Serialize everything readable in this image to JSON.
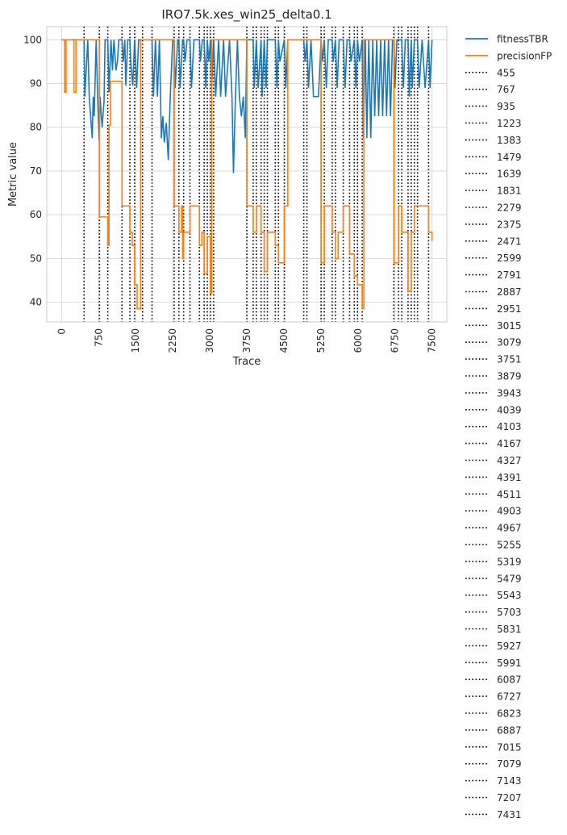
{
  "chart_data": {
    "type": "line",
    "title": "IRO7.5k.xes_win25_delta0.1",
    "xlabel": "Trace",
    "ylabel": "Metric value",
    "xlim": [
      -300,
      7800
    ],
    "ylim": [
      35.5,
      103
    ],
    "xticks": [
      0,
      750,
      1500,
      2250,
      3000,
      3750,
      4500,
      5250,
      6000,
      6750,
      7500
    ],
    "yticks": [
      40,
      50,
      60,
      70,
      80,
      90,
      100
    ],
    "grid": true,
    "legend_position": "outside-right",
    "series": [
      {
        "name": "fitnessTBR",
        "color": "#1f77b4",
        "points": [
          [
            0,
            100
          ],
          [
            455,
            100
          ],
          [
            470,
            87
          ],
          [
            530,
            100
          ],
          [
            560,
            87
          ],
          [
            620,
            77.5
          ],
          [
            640,
            87
          ],
          [
            660,
            82.5
          ],
          [
            700,
            100
          ],
          [
            730,
            87
          ],
          [
            760,
            77
          ],
          [
            780,
            87
          ],
          [
            820,
            80
          ],
          [
            860,
            86
          ],
          [
            880,
            100
          ],
          [
            935,
            100
          ],
          [
            960,
            88
          ],
          [
            1000,
            100
          ],
          [
            1030,
            93
          ],
          [
            1060,
            100
          ],
          [
            1100,
            93
          ],
          [
            1130,
            95
          ],
          [
            1160,
            100
          ],
          [
            1223,
            100
          ],
          [
            1250,
            95
          ],
          [
            1280,
            100
          ],
          [
            1300,
            89.5
          ],
          [
            1340,
            100
          ],
          [
            1383,
            100
          ],
          [
            1400,
            95
          ],
          [
            1440,
            89.5
          ],
          [
            1479,
            100
          ],
          [
            1520,
            89
          ],
          [
            1560,
            100
          ],
          [
            1639,
            100
          ],
          [
            1700,
            100
          ],
          [
            1831,
            100
          ],
          [
            1860,
            87
          ],
          [
            1900,
            100
          ],
          [
            1940,
            87
          ],
          [
            1980,
            100
          ],
          [
            2020,
            77.5
          ],
          [
            2050,
            82.5
          ],
          [
            2080,
            76.5
          ],
          [
            2120,
            81
          ],
          [
            2160,
            72.5
          ],
          [
            2200,
            87
          ],
          [
            2250,
            100
          ],
          [
            2279,
            100
          ],
          [
            2300,
            89
          ],
          [
            2350,
            100
          ],
          [
            2375,
            100
          ],
          [
            2400,
            89
          ],
          [
            2450,
            100
          ],
          [
            2471,
            100
          ],
          [
            2500,
            95
          ],
          [
            2540,
            100
          ],
          [
            2599,
            100
          ],
          [
            2630,
            89
          ],
          [
            2680,
            100
          ],
          [
            2791,
            100
          ],
          [
            2810,
            95
          ],
          [
            2850,
            100
          ],
          [
            2887,
            100
          ],
          [
            2920,
            89
          ],
          [
            2951,
            100
          ],
          [
            2980,
            95
          ],
          [
            3015,
            100
          ],
          [
            3040,
            89
          ],
          [
            3079,
            100
          ],
          [
            3120,
            87
          ],
          [
            3180,
            100
          ],
          [
            3220,
            87
          ],
          [
            3280,
            100
          ],
          [
            3320,
            87
          ],
          [
            3400,
            100
          ],
          [
            3450,
            87
          ],
          [
            3480,
            69.5
          ],
          [
            3520,
            87
          ],
          [
            3560,
            100
          ],
          [
            3600,
            87
          ],
          [
            3640,
            82.5
          ],
          [
            3680,
            87
          ],
          [
            3720,
            77.5
          ],
          [
            3751,
            100
          ],
          [
            3800,
            100
          ],
          [
            3879,
            100
          ],
          [
            3900,
            89
          ],
          [
            3943,
            100
          ],
          [
            3980,
            89
          ],
          [
            4039,
            100
          ],
          [
            4060,
            87
          ],
          [
            4103,
            100
          ],
          [
            4140,
            89
          ],
          [
            4167,
            100
          ],
          [
            4200,
            100
          ],
          [
            4327,
            100
          ],
          [
            4360,
            89
          ],
          [
            4391,
            100
          ],
          [
            4420,
            95
          ],
          [
            4511,
            100
          ],
          [
            4540,
            89
          ],
          [
            4580,
            100
          ],
          [
            4903,
            100
          ],
          [
            4930,
            95
          ],
          [
            4967,
            100
          ],
          [
            5000,
            89
          ],
          [
            5050,
            100
          ],
          [
            5100,
            87
          ],
          [
            5200,
            87
          ],
          [
            5255,
            100
          ],
          [
            5280,
            95
          ],
          [
            5319,
            100
          ],
          [
            5360,
            89
          ],
          [
            5400,
            100
          ],
          [
            5479,
            100
          ],
          [
            5500,
            95
          ],
          [
            5543,
            100
          ],
          [
            5580,
            89
          ],
          [
            5620,
            100
          ],
          [
            5703,
            100
          ],
          [
            5740,
            89
          ],
          [
            5780,
            100
          ],
          [
            5831,
            100
          ],
          [
            5860,
            95
          ],
          [
            5927,
            100
          ],
          [
            5960,
            89
          ],
          [
            5991,
            100
          ],
          [
            6030,
            95
          ],
          [
            6087,
            100
          ],
          [
            6110,
            77.5
          ],
          [
            6150,
            100
          ],
          [
            6180,
            77.5
          ],
          [
            6220,
            100
          ],
          [
            6260,
            77.5
          ],
          [
            6300,
            100
          ],
          [
            6340,
            82.5
          ],
          [
            6380,
            100
          ],
          [
            6420,
            82.5
          ],
          [
            6460,
            100
          ],
          [
            6500,
            82.5
          ],
          [
            6540,
            100
          ],
          [
            6580,
            82.5
          ],
          [
            6620,
            100
          ],
          [
            6660,
            82.5
          ],
          [
            6700,
            100
          ],
          [
            6727,
            100
          ],
          [
            6750,
            89
          ],
          [
            6790,
            100
          ],
          [
            6823,
            100
          ],
          [
            6887,
            100
          ],
          [
            6920,
            89
          ],
          [
            6960,
            100
          ],
          [
            7015,
            100
          ],
          [
            7040,
            87
          ],
          [
            7079,
            100
          ],
          [
            7100,
            89
          ],
          [
            7143,
            100
          ],
          [
            7207,
            100
          ],
          [
            7240,
            89
          ],
          [
            7300,
            100
          ],
          [
            7360,
            89
          ],
          [
            7431,
            100
          ],
          [
            7460,
            89
          ],
          [
            7500,
            100
          ]
        ]
      },
      {
        "name": "precisionFP",
        "color": "#ff7f0e",
        "points": [
          [
            0,
            100
          ],
          [
            60,
            100
          ],
          [
            60,
            88
          ],
          [
            90,
            88
          ],
          [
            90,
            100
          ],
          [
            250,
            100
          ],
          [
            250,
            88
          ],
          [
            290,
            88
          ],
          [
            290,
            100
          ],
          [
            455,
            100
          ],
          [
            767,
            100
          ],
          [
            767,
            59.5
          ],
          [
            935,
            59.5
          ],
          [
            935,
            53
          ],
          [
            960,
            53
          ],
          [
            960,
            80.5
          ],
          [
            990,
            80.5
          ],
          [
            990,
            90.5
          ],
          [
            1223,
            90.5
          ],
          [
            1223,
            62
          ],
          [
            1383,
            62
          ],
          [
            1383,
            56
          ],
          [
            1430,
            56
          ],
          [
            1430,
            53
          ],
          [
            1479,
            53
          ],
          [
            1479,
            44
          ],
          [
            1530,
            44
          ],
          [
            1530,
            38.5
          ],
          [
            1600,
            38.5
          ],
          [
            1600,
            100
          ],
          [
            1831,
            100
          ],
          [
            1831,
            100
          ],
          [
            2279,
            100
          ],
          [
            2279,
            62
          ],
          [
            2375,
            62
          ],
          [
            2375,
            56
          ],
          [
            2430,
            56
          ],
          [
            2430,
            62
          ],
          [
            2450,
            62
          ],
          [
            2450,
            50
          ],
          [
            2471,
            50
          ],
          [
            2471,
            56
          ],
          [
            2599,
            56
          ],
          [
            2599,
            62
          ],
          [
            2791,
            62
          ],
          [
            2791,
            53
          ],
          [
            2840,
            53
          ],
          [
            2840,
            56
          ],
          [
            2887,
            56
          ],
          [
            2887,
            46.5
          ],
          [
            2951,
            46.5
          ],
          [
            2951,
            55
          ],
          [
            3015,
            55
          ],
          [
            3015,
            42
          ],
          [
            3040,
            42
          ],
          [
            3040,
            100
          ],
          [
            3751,
            100
          ],
          [
            3751,
            62
          ],
          [
            3879,
            62
          ],
          [
            3879,
            56
          ],
          [
            3943,
            56
          ],
          [
            3943,
            62
          ],
          [
            4039,
            62
          ],
          [
            4039,
            56
          ],
          [
            4103,
            56
          ],
          [
            4103,
            47
          ],
          [
            4167,
            47
          ],
          [
            4167,
            56
          ],
          [
            4327,
            56
          ],
          [
            4327,
            53
          ],
          [
            4391,
            53
          ],
          [
            4391,
            49
          ],
          [
            4511,
            49
          ],
          [
            4511,
            62
          ],
          [
            4580,
            62
          ],
          [
            4580,
            100
          ],
          [
            4903,
            100
          ],
          [
            4967,
            100
          ],
          [
            5255,
            100
          ],
          [
            5255,
            49
          ],
          [
            5319,
            49
          ],
          [
            5319,
            62
          ],
          [
            5479,
            62
          ],
          [
            5479,
            56
          ],
          [
            5543,
            56
          ],
          [
            5543,
            50
          ],
          [
            5600,
            50
          ],
          [
            5600,
            56
          ],
          [
            5703,
            56
          ],
          [
            5703,
            62
          ],
          [
            5831,
            62
          ],
          [
            5831,
            51
          ],
          [
            5927,
            51
          ],
          [
            5927,
            46
          ],
          [
            5991,
            46
          ],
          [
            5991,
            44
          ],
          [
            6087,
            44
          ],
          [
            6087,
            38.5
          ],
          [
            6120,
            38.5
          ],
          [
            6120,
            100
          ],
          [
            6727,
            100
          ],
          [
            6727,
            49
          ],
          [
            6823,
            49
          ],
          [
            6823,
            62
          ],
          [
            6887,
            62
          ],
          [
            6887,
            56
          ],
          [
            7015,
            56
          ],
          [
            7015,
            42.5
          ],
          [
            7079,
            42.5
          ],
          [
            7079,
            56
          ],
          [
            7143,
            56
          ],
          [
            7143,
            62
          ],
          [
            7431,
            62
          ],
          [
            7431,
            56
          ],
          [
            7500,
            56
          ],
          [
            7500,
            54
          ]
        ]
      }
    ],
    "drift_lines": [
      455,
      767,
      935,
      1223,
      1383,
      1479,
      1639,
      1831,
      2279,
      2375,
      2471,
      2599,
      2791,
      2887,
      2951,
      3015,
      3079,
      3751,
      3879,
      3943,
      4039,
      4103,
      4167,
      4327,
      4391,
      4511,
      4903,
      4967,
      5255,
      5319,
      5479,
      5543,
      5703,
      5831,
      5927,
      5991,
      6087,
      6727,
      6823,
      6887,
      7015,
      7079,
      7143,
      7207,
      7431
    ]
  }
}
